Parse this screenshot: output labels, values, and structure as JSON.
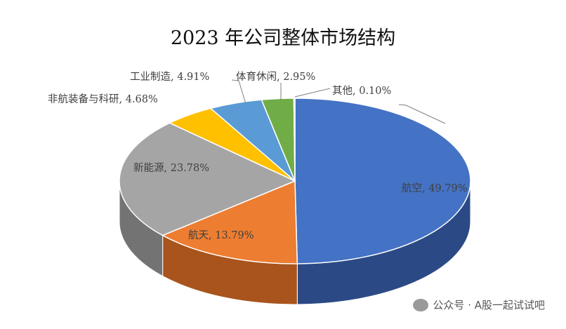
{
  "chart_data": {
    "type": "pie",
    "title": "2023 年公司整体市场结构",
    "style": "3d",
    "slices": [
      {
        "name": "航空",
        "value": 49.79,
        "label": "航空, 49.79%",
        "color": "#4472C4",
        "wall": "#2B4A85"
      },
      {
        "name": "航天",
        "value": 13.79,
        "label": "航天, 13.79%",
        "color": "#ED7D31",
        "wall": "#A8541C"
      },
      {
        "name": "新能源",
        "value": 23.78,
        "label": "新能源, 23.78%",
        "color": "#A5A5A5",
        "wall": "#737373"
      },
      {
        "name": "非航装备与科研",
        "value": 4.68,
        "label": "非航装备与科研, 4.68%",
        "color": "#FFC000",
        "wall": "#B38600"
      },
      {
        "name": "工业制造",
        "value": 4.91,
        "label": "工业制造, 4.91%",
        "color": "#5B9BD5",
        "wall": "#3E6F9C"
      },
      {
        "name": "体育休闲",
        "value": 2.95,
        "label": "体育休闲, 2.95%",
        "color": "#70AD47",
        "wall": "#4E7A31"
      },
      {
        "name": "其他",
        "value": 0.1,
        "label": "其他, 0.10%",
        "color": "#264478",
        "wall": "#1A2F54"
      }
    ]
  },
  "watermark": "公众号 · A股一起试试吧"
}
